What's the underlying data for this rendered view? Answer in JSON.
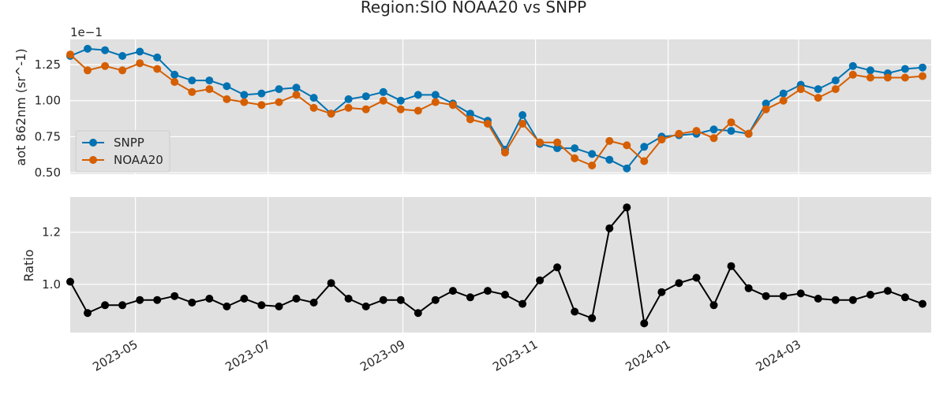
{
  "title": "Region:SIO NOAA20 vs SNPP",
  "colors": {
    "snpp": "#0072b2",
    "noaa20": "#d55e00",
    "ratio": "#000000",
    "panel_bg": "#e0e0e0",
    "grid": "#ffffff"
  },
  "chart_data": [
    {
      "type": "line",
      "ylabel": "aot 862nm (sr^-1)",
      "offset_label": "1e−1",
      "x_type": "date",
      "xlim": [
        "2023-04-01",
        "2024-05-01"
      ],
      "ylim": [
        0.049,
        0.1425
      ],
      "yticks": [
        0.05,
        0.075,
        0.1,
        0.125
      ],
      "ytick_labels": [
        "0.50",
        "0.75",
        "1.00",
        "1.25"
      ],
      "legend_position": "center-left",
      "grid": true,
      "x": [
        "2023-04-01",
        "2023-04-09",
        "2023-04-17",
        "2023-04-25",
        "2023-05-03",
        "2023-05-11",
        "2023-05-19",
        "2023-05-27",
        "2023-06-04",
        "2023-06-12",
        "2023-06-20",
        "2023-06-28",
        "2023-07-06",
        "2023-07-14",
        "2023-07-22",
        "2023-07-30",
        "2023-08-07",
        "2023-08-15",
        "2023-08-23",
        "2023-08-31",
        "2023-09-08",
        "2023-09-16",
        "2023-09-24",
        "2023-10-02",
        "2023-10-10",
        "2023-10-18",
        "2023-10-26",
        "2023-11-03",
        "2023-11-11",
        "2023-11-19",
        "2023-11-27",
        "2023-12-05",
        "2023-12-13",
        "2023-12-21",
        "2023-12-29",
        "2024-01-06",
        "2024-01-14",
        "2024-01-22",
        "2024-01-30",
        "2024-02-07",
        "2024-02-15",
        "2024-02-23",
        "2024-03-02",
        "2024-03-10",
        "2024-03-18",
        "2024-03-26",
        "2024-04-03",
        "2024-04-11",
        "2024-04-19",
        "2024-04-27"
      ],
      "series": [
        {
          "name": "SNPP",
          "values": [
            0.131,
            0.136,
            0.135,
            0.131,
            0.134,
            0.13,
            0.118,
            0.114,
            0.114,
            0.11,
            0.104,
            0.105,
            0.108,
            0.109,
            0.102,
            0.091,
            0.101,
            0.103,
            0.106,
            0.1,
            0.104,
            0.104,
            0.098,
            0.091,
            0.086,
            0.066,
            0.09,
            0.07,
            0.067,
            0.067,
            0.063,
            0.059,
            0.053,
            0.068,
            0.075,
            0.076,
            0.077,
            0.08,
            0.079,
            0.077,
            0.098,
            0.105,
            0.111,
            0.108,
            0.114,
            0.124,
            0.121,
            0.119,
            0.122,
            0.123
          ]
        },
        {
          "name": "NOAA20",
          "values": [
            0.132,
            0.121,
            0.124,
            0.121,
            0.126,
            0.122,
            0.113,
            0.106,
            0.108,
            0.101,
            0.099,
            0.097,
            0.099,
            0.104,
            0.095,
            0.091,
            0.095,
            0.094,
            0.1,
            0.094,
            0.093,
            0.099,
            0.097,
            0.087,
            0.084,
            0.064,
            0.084,
            0.071,
            0.071,
            0.06,
            0.055,
            0.072,
            0.069,
            0.058,
            0.073,
            0.077,
            0.079,
            0.074,
            0.085,
            0.077,
            0.094,
            0.1,
            0.108,
            0.102,
            0.108,
            0.118,
            0.116,
            0.116,
            0.116,
            0.117
          ]
        }
      ]
    },
    {
      "type": "line",
      "ylabel": "Ratio",
      "x_type": "date",
      "xlim": [
        "2023-04-01",
        "2024-05-01"
      ],
      "ylim": [
        0.815,
        1.335
      ],
      "yticks": [
        1.0,
        1.2
      ],
      "ytick_labels": [
        "1.0",
        "1.2"
      ],
      "grid": true,
      "x": [
        "2023-04-01",
        "2023-04-09",
        "2023-04-17",
        "2023-04-25",
        "2023-05-03",
        "2023-05-11",
        "2023-05-19",
        "2023-05-27",
        "2023-06-04",
        "2023-06-12",
        "2023-06-20",
        "2023-06-28",
        "2023-07-06",
        "2023-07-14",
        "2023-07-22",
        "2023-07-30",
        "2023-08-07",
        "2023-08-15",
        "2023-08-23",
        "2023-08-31",
        "2023-09-08",
        "2023-09-16",
        "2023-09-24",
        "2023-10-02",
        "2023-10-10",
        "2023-10-18",
        "2023-10-26",
        "2023-11-03",
        "2023-11-11",
        "2023-11-19",
        "2023-11-27",
        "2023-12-05",
        "2023-12-13",
        "2023-12-21",
        "2023-12-29",
        "2024-01-06",
        "2024-01-14",
        "2024-01-22",
        "2024-01-30",
        "2024-02-07",
        "2024-02-15",
        "2024-02-23",
        "2024-03-02",
        "2024-03-10",
        "2024-03-18",
        "2024-03-26",
        "2024-04-03",
        "2024-04-11",
        "2024-04-19",
        "2024-04-27"
      ],
      "series": [
        {
          "name": "",
          "values": [
            1.01,
            0.89,
            0.92,
            0.92,
            0.94,
            0.94,
            0.955,
            0.93,
            0.945,
            0.915,
            0.945,
            0.92,
            0.915,
            0.945,
            0.93,
            1.005,
            0.945,
            0.915,
            0.94,
            0.94,
            0.89,
            0.94,
            0.975,
            0.95,
            0.975,
            0.96,
            0.925,
            1.015,
            1.065,
            0.895,
            0.87,
            1.215,
            1.295,
            0.85,
            0.97,
            1.005,
            1.025,
            0.92,
            1.07,
            0.985,
            0.955,
            0.955,
            0.965,
            0.945,
            0.94,
            0.94,
            0.96,
            0.975,
            0.95,
            0.925
          ]
        }
      ]
    }
  ],
  "xticks": [
    "2023-05-01",
    "2023-07-01",
    "2023-09-01",
    "2023-11-01",
    "2024-01-01",
    "2024-03-01"
  ],
  "xtick_labels": [
    "2023-05",
    "2023-07",
    "2023-09",
    "2023-11",
    "2024-01",
    "2024-03"
  ]
}
